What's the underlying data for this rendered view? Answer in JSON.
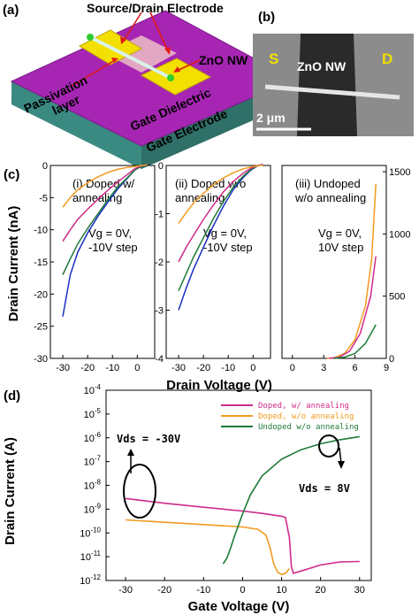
{
  "panel_a": {
    "label": "(a)",
    "source_drain": "Source/Drain Electrode",
    "nanowire": "ZnO NW",
    "passivation_line1": "Passivation",
    "passivation_line2": "layer",
    "gate_dielectric": "Gate Dielectric",
    "gate_electrode": "Gate Electrode",
    "colors": {
      "top": "#a626b3",
      "front": "#3a8a82",
      "side": "#2f7068",
      "pad": "#f3e000",
      "contact": "#2fcc2f"
    }
  },
  "panel_b": {
    "label": "(b)",
    "s": "S",
    "d": "D",
    "nanowire": "ZnO NW",
    "scale": "2 μm"
  },
  "panel_c": {
    "label": "(c)",
    "ylabel": "Drain Current (nA)",
    "xlabel": "Drain Voltage (V)"
  },
  "panel_d": {
    "label": "(d)",
    "ylabel": "Drain Current (A)",
    "xlabel": "Gate Voltage (V)",
    "vds_left": "Vds = -30V",
    "vds_right": "Vds = 8V"
  },
  "chart_data": [
    {
      "type": "line",
      "title": "(i) Doped w/ annealing",
      "annotation": "Vg = 0V, -10V step",
      "xlim": [
        -35,
        7
      ],
      "ylim": [
        -30,
        0
      ],
      "x_ticks": [
        "-30",
        "-20",
        "-10",
        "0"
      ],
      "y_ticks": [
        "-30",
        "-25",
        "-20",
        "-15",
        "-10",
        "-5",
        "0"
      ],
      "series": [
        {
          "color": "#1a2fc0",
          "points": [
            [
              -30,
              -23.5
            ],
            [
              -27,
              -17
            ],
            [
              -24,
              -13.5
            ],
            [
              -20,
              -10.5
            ],
            [
              -16,
              -8
            ],
            [
              -12,
              -5.8
            ],
            [
              -8,
              -3.7
            ],
            [
              -4,
              -2
            ],
            [
              -1,
              -0.7
            ],
            [
              2,
              0
            ],
            [
              4,
              0.1
            ]
          ]
        },
        {
          "color": "#1e7a3a",
          "points": [
            [
              -30,
              -17
            ],
            [
              -27,
              -14.5
            ],
            [
              -24,
              -12.2
            ],
            [
              -20,
              -9.8
            ],
            [
              -16,
              -7.6
            ],
            [
              -12,
              -5.4
            ],
            [
              -8,
              -3.4
            ],
            [
              -4,
              -1.9
            ],
            [
              -1,
              -0.7
            ],
            [
              2,
              0
            ],
            [
              4,
              0.1
            ]
          ]
        },
        {
          "color": "#cf2a8a",
          "points": [
            [
              -30,
              -11.8
            ],
            [
              -27,
              -10
            ],
            [
              -24,
              -8.4
            ],
            [
              -20,
              -6.8
            ],
            [
              -16,
              -5.3
            ],
            [
              -12,
              -3.9
            ],
            [
              -8,
              -2.6
            ],
            [
              -4,
              -1.4
            ],
            [
              -1,
              -0.5
            ],
            [
              2,
              0
            ],
            [
              4,
              0.1
            ]
          ]
        },
        {
          "color": "#f29a1e",
          "points": [
            [
              -30,
              -6.5
            ],
            [
              -27,
              -5
            ],
            [
              -24,
              -3.8
            ],
            [
              -20,
              -2.7
            ],
            [
              -16,
              -1.8
            ],
            [
              -12,
              -1.1
            ],
            [
              -8,
              -0.6
            ],
            [
              -4,
              -0.3
            ],
            [
              0,
              -0.1
            ],
            [
              4,
              0.1
            ]
          ]
        }
      ]
    },
    {
      "type": "line",
      "title": "(ii) Doped w/o annealing",
      "annotation": "Vg = 0V, -10V step",
      "xlim": [
        -35,
        7
      ],
      "ylim": [
        -4,
        0
      ],
      "x_ticks": [
        "-30",
        "-20",
        "-10",
        "0"
      ],
      "y_ticks": [
        "-4",
        "-3",
        "-2",
        "-1",
        "0"
      ],
      "series": [
        {
          "color": "#1a2fc0",
          "points": [
            [
              -30,
              -3
            ],
            [
              -27,
              -2.55
            ],
            [
              -24,
              -2.15
            ],
            [
              -20,
              -1.7
            ],
            [
              -16,
              -1.25
            ],
            [
              -12,
              -0.85
            ],
            [
              -8,
              -0.5
            ],
            [
              -4,
              -0.25
            ],
            [
              -1,
              -0.1
            ],
            [
              2,
              0
            ],
            [
              4,
              0.02
            ]
          ]
        },
        {
          "color": "#1e7a3a",
          "points": [
            [
              -30,
              -2.6
            ],
            [
              -27,
              -2.25
            ],
            [
              -24,
              -1.9
            ],
            [
              -20,
              -1.5
            ],
            [
              -16,
              -1.1
            ],
            [
              -12,
              -0.75
            ],
            [
              -8,
              -0.45
            ],
            [
              -4,
              -0.22
            ],
            [
              -1,
              -0.09
            ],
            [
              2,
              0
            ],
            [
              4,
              0.02
            ]
          ]
        },
        {
          "color": "#cf2a8a",
          "points": [
            [
              -30,
              -2
            ],
            [
              -27,
              -1.7
            ],
            [
              -24,
              -1.45
            ],
            [
              -20,
              -1.12
            ],
            [
              -16,
              -0.82
            ],
            [
              -12,
              -0.55
            ],
            [
              -8,
              -0.33
            ],
            [
              -4,
              -0.16
            ],
            [
              -1,
              -0.06
            ],
            [
              2,
              0
            ],
            [
              4,
              0.02
            ]
          ]
        },
        {
          "color": "#f29a1e",
          "points": [
            [
              -30,
              -1.2
            ],
            [
              -27,
              -0.98
            ],
            [
              -24,
              -0.78
            ],
            [
              -20,
              -0.58
            ],
            [
              -16,
              -0.4
            ],
            [
              -12,
              -0.26
            ],
            [
              -8,
              -0.15
            ],
            [
              -4,
              -0.07
            ],
            [
              0,
              -0.02
            ],
            [
              4,
              0.01
            ]
          ]
        }
      ]
    },
    {
      "type": "line",
      "title": "(iii) Undoped w/o annealing",
      "annotation": "Vg = 0V, 10V step",
      "xlim": [
        -1,
        9
      ],
      "ylim": [
        0,
        1550
      ],
      "x_ticks": [
        "0",
        "3",
        "6",
        "9"
      ],
      "y_ticks": [
        "0",
        "500",
        "1000",
        "1500"
      ],
      "series": [
        {
          "color": "#f29a1e",
          "points": [
            [
              3.3,
              0
            ],
            [
              4,
              5
            ],
            [
              5,
              40
            ],
            [
              6,
              150
            ],
            [
              7,
              420
            ],
            [
              7.6,
              800
            ],
            [
              8,
              1400
            ]
          ]
        },
        {
          "color": "#cf2a8a",
          "points": [
            [
              3.5,
              0
            ],
            [
              4.5,
              10
            ],
            [
              5.5,
              60
            ],
            [
              6.5,
              200
            ],
            [
              7.5,
              500
            ],
            [
              8,
              820
            ]
          ]
        },
        {
          "color": "#1e7a3a",
          "points": [
            [
              4,
              0
            ],
            [
              5,
              10
            ],
            [
              6,
              40
            ],
            [
              7,
              120
            ],
            [
              8,
              270
            ]
          ]
        }
      ]
    },
    {
      "type": "line",
      "log_y": true,
      "xlim": [
        -35,
        33
      ],
      "ylim_exp": [
        -12,
        -4
      ],
      "x_ticks": [
        "-30",
        "-20",
        "-10",
        "0",
        "10",
        "20",
        "30"
      ],
      "y_ticks": [
        "-12",
        "-11",
        "-10",
        "-9",
        "-8",
        "-7",
        "-6",
        "-5",
        "-4"
      ],
      "legend_position": "top-right",
      "series": [
        {
          "name": "Doped, w/ annealing",
          "color": "#cf2a8a",
          "points": [
            [
              -30,
              -8.55
            ],
            [
              -20,
              -8.75
            ],
            [
              -10,
              -8.92
            ],
            [
              0,
              -9.08
            ],
            [
              5,
              -9.18
            ],
            [
              10,
              -9.3
            ],
            [
              11,
              -9.35
            ],
            [
              12,
              -10.2
            ],
            [
              12.5,
              -11.4
            ],
            [
              13,
              -11.7
            ],
            [
              15,
              -11.6
            ],
            [
              20,
              -11.35
            ],
            [
              25,
              -11.22
            ],
            [
              30,
              -11.2
            ]
          ]
        },
        {
          "name": "Doped, w/o annealing",
          "color": "#f29a1e",
          "points": [
            [
              -30,
              -9.45
            ],
            [
              -20,
              -9.55
            ],
            [
              -10,
              -9.65
            ],
            [
              0,
              -9.75
            ],
            [
              4,
              -9.85
            ],
            [
              6,
              -10.1
            ],
            [
              7,
              -10.6
            ],
            [
              8,
              -11.3
            ],
            [
              9,
              -11.65
            ],
            [
              10,
              -11.75
            ],
            [
              11,
              -11.7
            ],
            [
              12,
              -11.5
            ]
          ]
        },
        {
          "name": "Undoped w/o annealing",
          "color": "#1e7a3a",
          "points": [
            [
              -5,
              -11.3
            ],
            [
              -4,
              -11.05
            ],
            [
              -3,
              -10.6
            ],
            [
              -2,
              -10.1
            ],
            [
              0,
              -9.2
            ],
            [
              2,
              -8.4
            ],
            [
              5,
              -7.6
            ],
            [
              10,
              -6.9
            ],
            [
              15,
              -6.5
            ],
            [
              20,
              -6.25
            ],
            [
              25,
              -6.08
            ],
            [
              30,
              -5.95
            ]
          ]
        }
      ]
    }
  ]
}
